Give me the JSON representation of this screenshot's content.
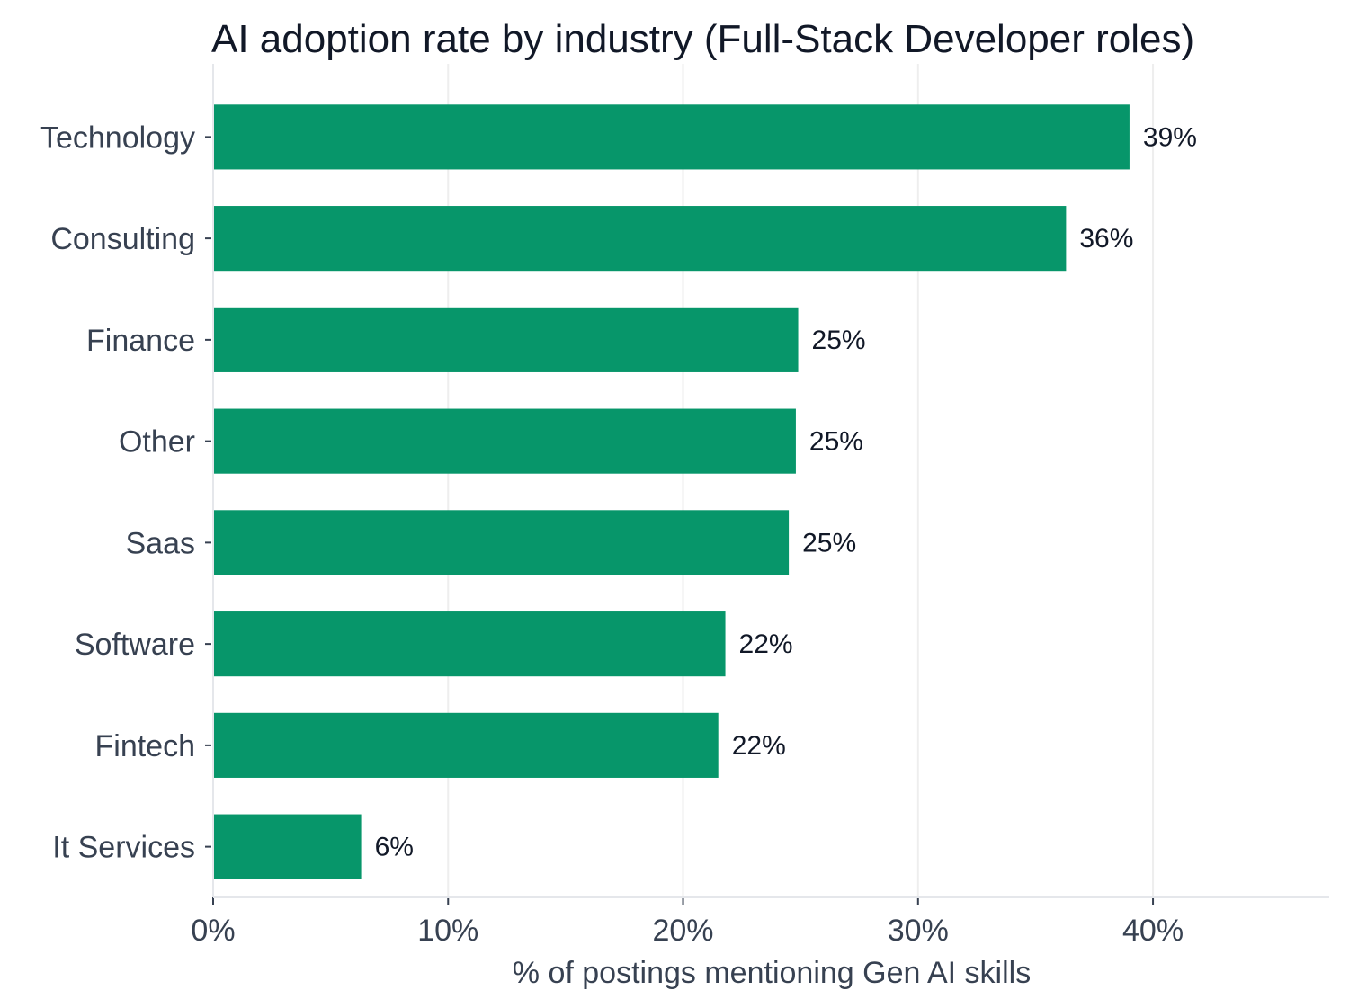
{
  "chart_data": {
    "type": "bar",
    "orientation": "horizontal",
    "title": "AI adoption rate by industry (Full-Stack Developer roles)",
    "xlabel": "% of postings mentioning Gen AI skills",
    "ylabel": "",
    "categories": [
      "Technology",
      "Consulting",
      "Finance",
      "Other",
      "Saas",
      "Software",
      "Fintech",
      "It Services"
    ],
    "values": [
      39,
      36.3,
      24.9,
      24.8,
      24.5,
      21.8,
      21.5,
      6.3
    ],
    "data_labels": [
      "39%",
      "36%",
      "25%",
      "25%",
      "25%",
      "22%",
      "22%",
      "6%"
    ],
    "xlim": [
      0,
      47.5
    ],
    "xticks": [
      0,
      10,
      20,
      30,
      40
    ],
    "xtick_labels": [
      "0%",
      "10%",
      "20%",
      "30%",
      "40%"
    ],
    "grid": "vertical",
    "bar_color": "#07966A"
  }
}
